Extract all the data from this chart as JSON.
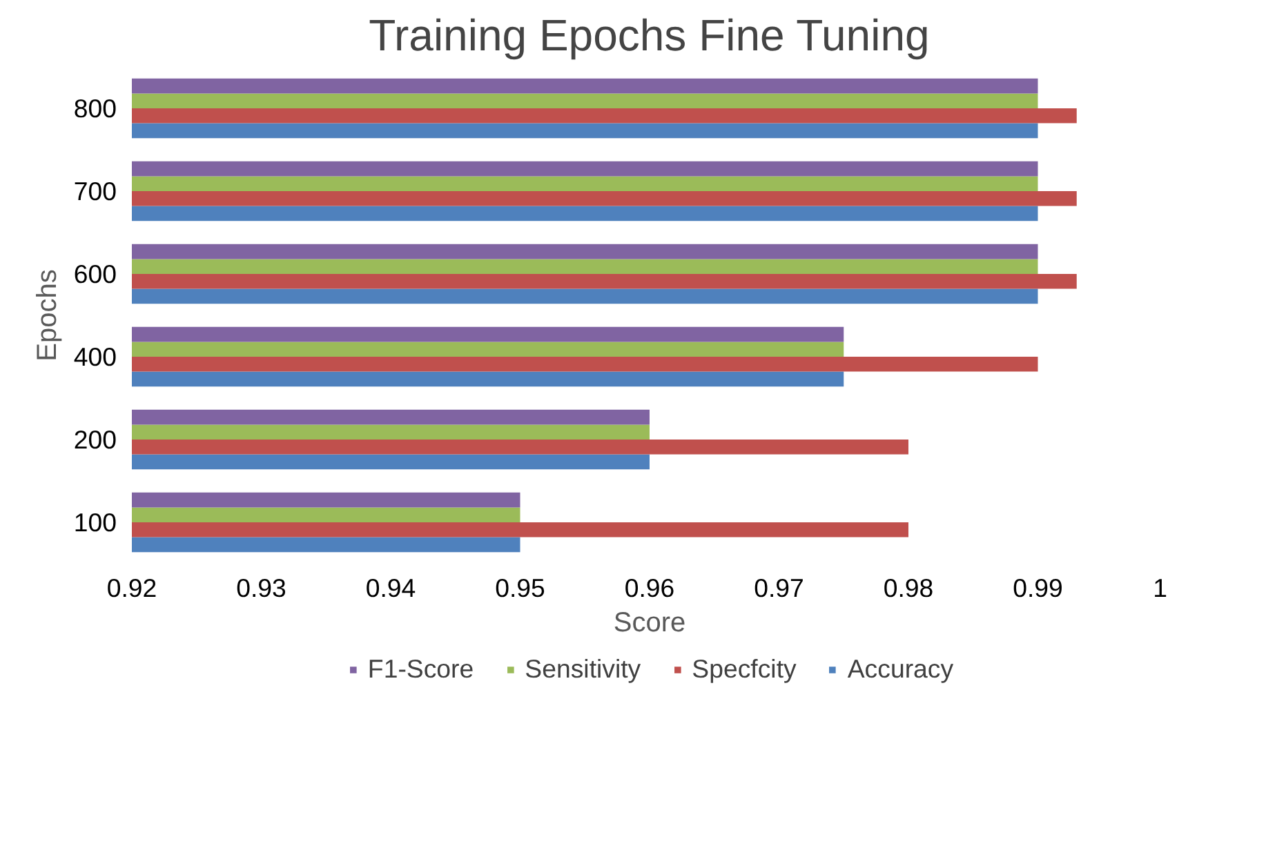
{
  "chart_data": {
    "type": "bar",
    "orientation": "horizontal",
    "title": "Training Epochs Fine Tuning",
    "xlabel": "Score",
    "ylabel": "Epochs",
    "categories": [
      "800",
      "700",
      "600",
      "400",
      "200",
      "100"
    ],
    "series": [
      {
        "name": "Accuracy",
        "color": "#4f81bd",
        "values": [
          0.99,
          0.99,
          0.99,
          0.975,
          0.96,
          0.95
        ]
      },
      {
        "name": "Specfcity",
        "color": "#c0504d",
        "values": [
          0.993,
          0.993,
          0.993,
          0.99,
          0.98,
          0.98
        ]
      },
      {
        "name": "Sensitivity",
        "color": "#9bbb59",
        "values": [
          0.99,
          0.99,
          0.99,
          0.975,
          0.96,
          0.95
        ]
      },
      {
        "name": "F1-Score",
        "color": "#8064a2",
        "values": [
          0.99,
          0.99,
          0.99,
          0.975,
          0.96,
          0.95
        ]
      }
    ],
    "xlim": [
      0.92,
      1.0
    ],
    "xticks": [
      0.92,
      0.93,
      0.94,
      0.95,
      0.96,
      0.97,
      0.98,
      0.99,
      {
        "value": 1.0,
        "label": "1"
      }
    ],
    "legend": "bottom"
  }
}
